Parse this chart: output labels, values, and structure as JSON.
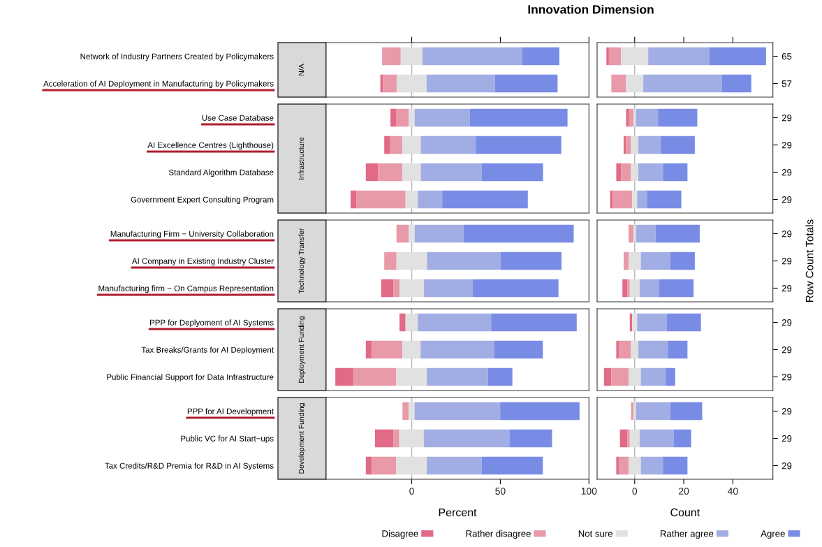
{
  "chart_data": [
    {
      "type": "bar",
      "orientation": "horizontal",
      "title": "Innovation Dimension",
      "subtitle": "N/A",
      "categories": [
        "Network of Industry Partners Created by Policymakers",
        "Acceleration of AI Deployment in Manufacturing by Policymakers"
      ],
      "series": [
        {
          "color": "#e26a86",
          "base": [
            null,
            -17.7
          ],
          "values": [
            null,
            1.5
          ]
        },
        {
          "color": "#e89aa9",
          "base": [
            -16.7,
            -16.2
          ],
          "values": [
            10.5,
            7.7
          ]
        },
        {
          "color": "#e1e1e1",
          "base": [
            -6.2,
            -8.5
          ],
          "values": [
            12.3,
            16.9
          ]
        },
        {
          "color": "#a2aee3",
          "base": [
            6.1,
            8.4
          ],
          "values": [
            56.1,
            38.5
          ]
        },
        {
          "color": "#788ce6",
          "base": [
            62.2,
            46.9
          ],
          "values": [
            21.1,
            35.4
          ]
        }
      ],
      "xlim": [
        -48.4,
        100
      ],
      "xticks": [
        0,
        50,
        100
      ],
      "tick_labels": "y",
      "ref_lines": [
        {
          "axis": "x",
          "value": 0,
          "color": "#b3b3b3"
        }
      ]
    },
    {
      "type": "bar",
      "orientation": "horizontal",
      "categories": [
        "65",
        "57"
      ],
      "series": [
        {
          "color": "#e26a86",
          "base": [
            -11.5,
            null
          ],
          "values": [
            1,
            null
          ]
        },
        {
          "color": "#e89aa9",
          "base": [
            -10.5,
            -9.5
          ],
          "values": [
            5,
            6
          ]
        },
        {
          "color": "#e1e1e1",
          "base": [
            -5.5,
            -3.5
          ],
          "values": [
            11,
            7
          ]
        },
        {
          "color": "#a2aee3",
          "base": [
            5.5,
            3.5
          ],
          "values": [
            25,
            32
          ]
        },
        {
          "color": "#788ce6",
          "base": [
            30.5,
            35.5
          ],
          "values": [
            23,
            12
          ]
        }
      ],
      "xlim": [
        -15.3,
        56.3
      ],
      "xticks": [
        0,
        20,
        40
      ],
      "tick_labels": "y",
      "ref_lines": [
        {
          "axis": "x",
          "value": 0,
          "color": "#b3b3b3"
        }
      ]
    },
    {
      "type": "bar",
      "orientation": "horizontal",
      "subtitle": "Infrastructure",
      "categories": [
        "Use Case Database",
        "AI Excellence Centres (Lighthouse)",
        "Standard Algorithm Database",
        "Government Expert Consulting Program"
      ],
      "series": [
        {
          "color": "#e26a86",
          "base": [
            -12.0,
            -15.5,
            -25.9,
            -34.5
          ],
          "values": [
            3.4,
            3.4,
            6.9,
            3.4
          ]
        },
        {
          "color": "#e89aa9",
          "base": [
            -8.6,
            -12.1,
            -19.0,
            -31.1
          ],
          "values": [
            6.9,
            6.9,
            13.8,
            27.6
          ]
        },
        {
          "color": "#e1e1e1",
          "base": [
            -1.7,
            -5.2,
            -5.2,
            -3.5
          ],
          "values": [
            3.4,
            10.3,
            10.3,
            6.9
          ]
        },
        {
          "color": "#a2aee3",
          "base": [
            1.7,
            5.1,
            5.1,
            3.4
          ],
          "values": [
            31.0,
            31.0,
            34.5,
            13.8
          ]
        },
        {
          "color": "#788ce6",
          "base": [
            32.7,
            36.1,
            39.6,
            17.2
          ],
          "values": [
            55.2,
            48.3,
            34.5,
            48.3
          ]
        }
      ],
      "xlim": [
        -48.4,
        100
      ],
      "xticks": [
        0,
        50,
        100
      ],
      "tick_labels": "y",
      "ref_lines": [
        {
          "axis": "x",
          "value": 0,
          "color": "#b3b3b3"
        }
      ]
    },
    {
      "type": "bar",
      "orientation": "horizontal",
      "categories": [
        "29",
        "29",
        "29",
        "29"
      ],
      "series": [
        {
          "color": "#e26a86",
          "base": [
            -3.5,
            -4.5,
            -7.5,
            -10
          ],
          "values": [
            1,
            1,
            2,
            1
          ]
        },
        {
          "color": "#e89aa9",
          "base": [
            -2.5,
            -3.5,
            -5.5,
            -9
          ],
          "values": [
            2,
            2,
            4,
            8
          ]
        },
        {
          "color": "#e1e1e1",
          "base": [
            -0.5,
            -1.5,
            -1.5,
            -1
          ],
          "values": [
            1,
            3,
            3,
            2
          ]
        },
        {
          "color": "#a2aee3",
          "base": [
            0.5,
            1.5,
            1.5,
            1
          ],
          "values": [
            9,
            9,
            10,
            4
          ]
        },
        {
          "color": "#788ce6",
          "base": [
            9.5,
            10.5,
            11.5,
            5
          ],
          "values": [
            16,
            14,
            10,
            14
          ]
        }
      ],
      "xlim": [
        -15.3,
        56.3
      ],
      "xticks": [
        0,
        20,
        40
      ],
      "tick_labels": "y",
      "ref_lines": [
        {
          "axis": "x",
          "value": 0,
          "color": "#b3b3b3"
        }
      ]
    },
    {
      "type": "bar",
      "orientation": "horizontal",
      "subtitle": "Technology Transfer",
      "categories": [
        "Manufacturing Firm − University Collaboration",
        "AI Company in Existing Industry Cluster",
        "Manufacturing firm − On Campus Representation"
      ],
      "series": [
        {
          "color": "#e26a86",
          "base": [
            null,
            null,
            -17.2
          ],
          "values": [
            null,
            null,
            6.9
          ]
        },
        {
          "color": "#e89aa9",
          "base": [
            -8.6,
            -15.5,
            -10.3
          ],
          "values": [
            6.9,
            6.9,
            3.4
          ]
        },
        {
          "color": "#e1e1e1",
          "base": [
            -1.7,
            -8.6,
            -6.9
          ],
          "values": [
            3.4,
            17.2,
            13.8
          ]
        },
        {
          "color": "#a2aee3",
          "base": [
            1.7,
            8.6,
            6.9
          ],
          "values": [
            27.6,
            41.4,
            27.6
          ]
        },
        {
          "color": "#788ce6",
          "base": [
            29.3,
            50.0,
            34.5
          ],
          "values": [
            62.1,
            34.5,
            48.3
          ]
        }
      ],
      "xlim": [
        -48.4,
        100
      ],
      "xticks": [
        0,
        50,
        100
      ],
      "tick_labels": "y",
      "ref_lines": [
        {
          "axis": "x",
          "value": 0,
          "color": "#b3b3b3"
        }
      ]
    },
    {
      "type": "bar",
      "orientation": "horizontal",
      "ylabel": "Row Count Totals",
      "categories": [
        "29",
        "29",
        "29"
      ],
      "series": [
        {
          "color": "#e26a86",
          "base": [
            null,
            null,
            -5
          ],
          "values": [
            null,
            null,
            2
          ]
        },
        {
          "color": "#e89aa9",
          "base": [
            -2.5,
            -4.5,
            -3
          ],
          "values": [
            2,
            2,
            1
          ]
        },
        {
          "color": "#e1e1e1",
          "base": [
            -0.5,
            -2.5,
            -2
          ],
          "values": [
            1,
            5,
            4
          ]
        },
        {
          "color": "#a2aee3",
          "base": [
            0.5,
            2.5,
            2
          ],
          "values": [
            8,
            12,
            8
          ]
        },
        {
          "color": "#788ce6",
          "base": [
            8.5,
            14.5,
            10
          ],
          "values": [
            18,
            10,
            14
          ]
        }
      ],
      "xlim": [
        -15.3,
        56.3
      ],
      "xticks": [
        0,
        20,
        40
      ],
      "tick_labels": "y",
      "ref_lines": [
        {
          "axis": "x",
          "value": 0,
          "color": "#b3b3b3"
        }
      ]
    },
    {
      "type": "bar",
      "orientation": "horizontal",
      "subtitle": "Deployment Funding",
      "categories": [
        "PPP for Deplyoment of AI Systems",
        "Tax Breaks/Grants for AI Deployment",
        "Public Financial Support for Data Infrastructure"
      ],
      "series": [
        {
          "color": "#e26a86",
          "base": [
            -6.9,
            -25.9,
            -43.1
          ],
          "values": [
            3.4,
            3.4,
            10.3
          ]
        },
        {
          "color": "#e89aa9",
          "base": [
            null,
            -22.5,
            -32.8
          ],
          "values": [
            null,
            17.2,
            24.1
          ]
        },
        {
          "color": "#e1e1e1",
          "base": [
            -3.5,
            -5.3,
            -8.7
          ],
          "values": [
            6.9,
            10.3,
            17.2
          ]
        },
        {
          "color": "#a2aee3",
          "base": [
            3.4,
            5.0,
            8.5
          ],
          "values": [
            41.4,
            41.4,
            34.5
          ]
        },
        {
          "color": "#788ce6",
          "base": [
            44.8,
            46.4,
            43.0
          ],
          "values": [
            48.3,
            27.6,
            13.8
          ]
        }
      ],
      "xlim": [
        -48.4,
        100
      ],
      "xticks": [
        0,
        50,
        100
      ],
      "tick_labels": "y",
      "ref_lines": [
        {
          "axis": "x",
          "value": 0,
          "color": "#b3b3b3"
        }
      ]
    },
    {
      "type": "bar",
      "orientation": "horizontal",
      "categories": [
        "29",
        "29",
        "29"
      ],
      "series": [
        {
          "color": "#e26a86",
          "base": [
            -2,
            -7.5,
            -12.5
          ],
          "values": [
            1,
            1,
            3
          ]
        },
        {
          "color": "#e89aa9",
          "base": [
            null,
            -6.5,
            -9.5
          ],
          "values": [
            null,
            5,
            7
          ]
        },
        {
          "color": "#e1e1e1",
          "base": [
            -1,
            -1.5,
            -2.5
          ],
          "values": [
            2,
            3,
            5
          ]
        },
        {
          "color": "#a2aee3",
          "base": [
            1,
            1.5,
            2.5
          ],
          "values": [
            12,
            12,
            10
          ]
        },
        {
          "color": "#788ce6",
          "base": [
            13,
            13.5,
            12.5
          ],
          "values": [
            14,
            8,
            4
          ]
        }
      ],
      "xlim": [
        -15.3,
        56.3
      ],
      "xticks": [
        0,
        20,
        40
      ],
      "tick_labels": "y",
      "ref_lines": [
        {
          "axis": "x",
          "value": 0,
          "color": "#b3b3b3"
        }
      ]
    },
    {
      "type": "bar",
      "orientation": "horizontal",
      "subtitle": "Development Funding",
      "xlabel": "Percent",
      "categories": [
        "PPP for AI Development",
        "Public VC for AI Start−ups",
        "Tax Credits/R&D Premia for R&D in AI Systems"
      ],
      "series": [
        {
          "color": "#e26a86",
          "base": [
            null,
            -20.7,
            -25.9
          ],
          "values": [
            null,
            10.3,
            3.4
          ]
        },
        {
          "color": "#e89aa9",
          "base": [
            -5.2,
            -10.4,
            -22.5
          ],
          "values": [
            3.4,
            3.4,
            13.8
          ]
        },
        {
          "color": "#e1e1e1",
          "base": [
            -1.8,
            -7.0,
            -8.7
          ],
          "values": [
            3.4,
            13.8,
            17.2
          ]
        },
        {
          "color": "#a2aee3",
          "base": [
            1.6,
            6.8,
            8.5
          ],
          "values": [
            48.3,
            48.3,
            31.0
          ]
        },
        {
          "color": "#788ce6",
          "base": [
            49.9,
            55.1,
            39.5
          ],
          "values": [
            44.8,
            24.1,
            34.5
          ]
        }
      ],
      "xlim": [
        -48.4,
        100
      ],
      "xticks": [
        0,
        50,
        100
      ],
      "ref_lines": [
        {
          "axis": "x",
          "value": 0,
          "color": "#b3b3b3"
        }
      ]
    },
    {
      "type": "bar",
      "orientation": "horizontal",
      "xlabel": "Count",
      "legend": "bottom",
      "categories": [
        "29",
        "29",
        "29"
      ],
      "series": [
        {
          "name": "Disagree",
          "color": "#e26a86",
          "base": [
            null,
            -6,
            -7.5
          ],
          "values": [
            null,
            3,
            1
          ]
        },
        {
          "name": "Rather disagree",
          "color": "#e89aa9",
          "base": [
            -1.5,
            -3,
            -6.5
          ],
          "values": [
            1,
            1,
            4
          ]
        },
        {
          "name": "Not sure",
          "color": "#e1e1e1",
          "base": [
            -0.5,
            -2,
            -2.5
          ],
          "values": [
            1,
            4,
            5
          ]
        },
        {
          "name": "Rather agree",
          "color": "#a2aee3",
          "base": [
            0.5,
            2,
            2.5
          ],
          "values": [
            14,
            14,
            9
          ]
        },
        {
          "name": "Agree",
          "color": "#788ce6",
          "base": [
            14.5,
            16,
            11.5
          ],
          "values": [
            13,
            7,
            10
          ]
        }
      ],
      "xlim": [
        -15.3,
        56.3
      ],
      "xticks": [
        0,
        20,
        40
      ],
      "ref_lines": [
        {
          "axis": "x",
          "value": 0,
          "color": "#b3b3b3"
        }
      ]
    }
  ]
}
